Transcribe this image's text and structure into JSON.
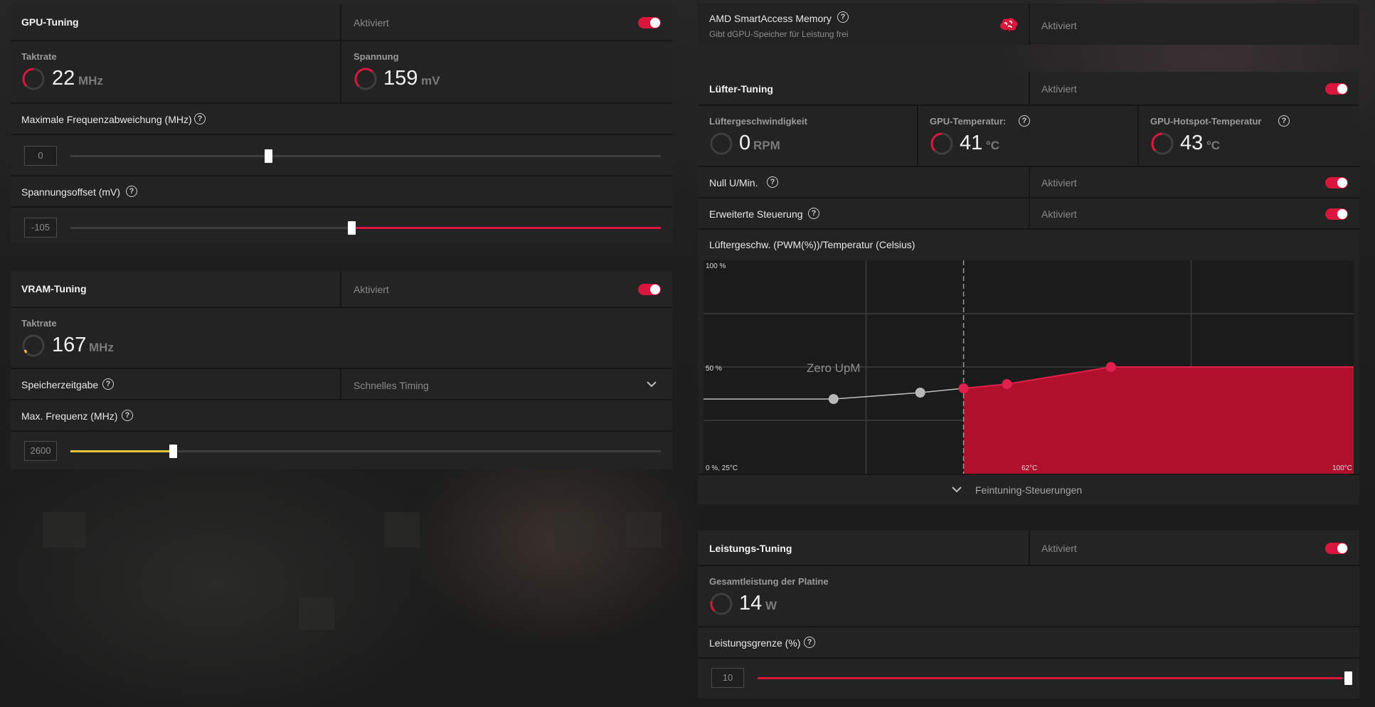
{
  "colors": {
    "accent": "#d9163b",
    "vram_accent": "#f2c53d",
    "panel": "#222223"
  },
  "gpu_tuning": {
    "title": "GPU-Tuning",
    "status": "Aktiviert",
    "clock_label": "Taktrate",
    "clock_value": "22",
    "clock_unit": "MHz",
    "voltage_label": "Spannung",
    "voltage_value": "159",
    "voltage_unit": "mV",
    "max_freq_label": "Maximale Frequenzabweichung (MHz)",
    "max_freq_value": "0",
    "max_freq_fraction": 0.335,
    "voltage_offset_label": "Spannungsoffset (mV)",
    "voltage_offset_value": "-105",
    "voltage_offset_fraction": 0.476
  },
  "vram_tuning": {
    "title": "VRAM-Tuning",
    "status": "Aktiviert",
    "clock_label": "Taktrate",
    "clock_value": "167",
    "clock_unit": "MHz",
    "timing_label": "Speicherzeitgabe",
    "timing_value": "Schnelles Timing",
    "max_freq_label": "Max. Frequenz (MHz)",
    "max_freq_value": "2600",
    "max_freq_fraction": 0.174
  },
  "sam": {
    "title": "AMD SmartAccess Memory",
    "subtitle": "Gibt dGPU-Speicher für Leistung frei",
    "icon": "brain-icon",
    "status": "Aktiviert"
  },
  "fan_tuning": {
    "title": "Lüfter-Tuning",
    "status": "Aktiviert",
    "fan_speed_label": "Lüftergeschwindigkeit",
    "fan_speed_value": "0",
    "fan_speed_unit": "RPM",
    "gpu_temp_label": "GPU-Temperatur:",
    "gpu_temp_value": "41",
    "gpu_temp_unit": "°C",
    "hotspot_label": "GPU-Hotspot-Temperatur",
    "hotspot_value": "43",
    "hotspot_unit": "°C",
    "zero_rpm_label": "Null U/Min.",
    "zero_rpm_status": "Aktiviert",
    "advanced_label": "Erweiterte Steuerung",
    "advanced_status": "Aktiviert",
    "curve_label": "Lüftergeschw. (PWM(%))/Temperatur (Celsius)",
    "fine_tune_label": "Feintuning-Steuerungen"
  },
  "chart_data": {
    "type": "line",
    "xlabel": "",
    "ylabel": "",
    "xlim": [
      25,
      100
    ],
    "ylim": [
      0,
      100
    ],
    "y_tick_labels": [
      "100 %",
      "50 %"
    ],
    "x_tick_labels": [
      "0 %, 25°C",
      "62°C",
      "100°C"
    ],
    "annotation": "Zero UpM",
    "grid": true,
    "series": [
      {
        "x": [
          40,
          50,
          55,
          60,
          72,
          100
        ],
        "y": [
          35,
          38,
          40,
          42,
          50,
          50
        ]
      }
    ],
    "zero_rpm_threshold_x": 55
  },
  "power_tuning": {
    "title": "Leistungs-Tuning",
    "status": "Aktiviert",
    "board_power_label": "Gesamtleistung der Platine",
    "board_power_value": "14",
    "board_power_unit": "W",
    "limit_label": "Leistungsgrenze (%)",
    "limit_value": "10",
    "limit_fraction": 1.0
  }
}
